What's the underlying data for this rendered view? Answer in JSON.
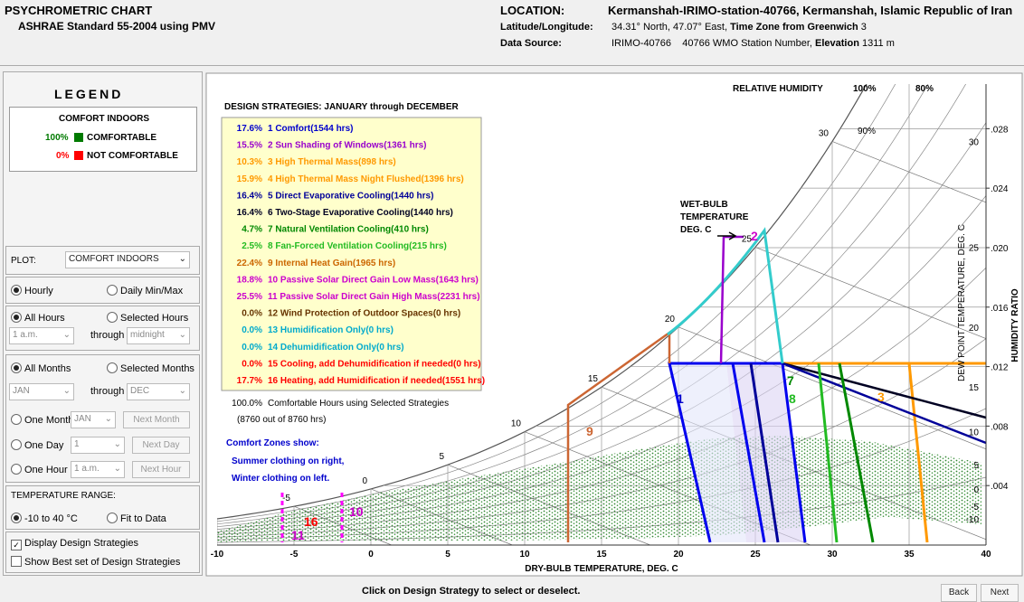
{
  "header": {
    "title": "PSYCHROMETRIC CHART",
    "subtitle": "ASHRAE Standard 55-2004 using PMV",
    "location_label": "LOCATION:",
    "location": "Kermanshah-IRIMO-station-40766, Kermanshah, Islamic Republic of Iran",
    "latlon_label": "Latitude/Longitude:",
    "latlon": "34.31° North, 47.07° East,",
    "timezone_label": "Time Zone from Greenwich",
    "timezone": "3",
    "source_label": "Data Source:",
    "source": "IRIMO-40766",
    "wmo": "40766 WMO Station Number,",
    "elevation_label": "Elevation",
    "elevation": "1311 m"
  },
  "legend": {
    "title": "LEGEND",
    "heading": "COMFORT INDOORS",
    "items": [
      {
        "percent": "100%",
        "label": "COMFORTABLE",
        "color": "#007a00"
      },
      {
        "percent": "0%",
        "label": "NOT COMFORTABLE",
        "color": "#ff0000"
      }
    ]
  },
  "controls": {
    "plot_label": "PLOT:",
    "plot_value": "COMFORT INDOORS",
    "hourly": "Hourly",
    "daily": "Daily Min/Max",
    "all_hours": "All Hours",
    "selected_hours": "Selected Hours",
    "hour_from": "1 a.m.",
    "through": "through",
    "hour_to": "midnight",
    "all_months": "All Months",
    "selected_months": "Selected Months",
    "month_from": "JAN",
    "month_to": "DEC",
    "one_month": "One Month",
    "one_month_value": "JAN",
    "next_month": "Next Month",
    "one_day": "One Day",
    "one_day_value": "1",
    "next_day": "Next Day",
    "one_hour": "One Hour",
    "one_hour_value": "1 a.m.",
    "next_hour": "Next Hour",
    "temp_range_label": "TEMPERATURE RANGE:",
    "temp_range": "-10 to 40 °C",
    "fit": "Fit to Data",
    "display_strategies": "Display Design Strategies",
    "best_strategies": "Show Best set of Design Strategies"
  },
  "chart": {
    "strategies_title": "DESIGN STRATEGIES:  JANUARY through DECEMBER",
    "strategies": [
      {
        "percent": "17.6%",
        "label": "1 Comfort(1544 hrs)",
        "color": "#0000cc"
      },
      {
        "percent": "15.5%",
        "label": "2 Sun Shading of Windows(1361 hrs)",
        "color": "#9900cc"
      },
      {
        "percent": "10.3%",
        "label": "3 High Thermal Mass(898 hrs)",
        "color": "#ff9900"
      },
      {
        "percent": "15.9%",
        "label": "4 High Thermal Mass Night Flushed(1396 hrs)",
        "color": "#ff9900"
      },
      {
        "percent": "16.4%",
        "label": "5 Direct Evaporative Cooling(1440 hrs)",
        "color": "#000099"
      },
      {
        "percent": "16.4%",
        "label": "6 Two-Stage Evaporative Cooling(1440 hrs)",
        "color": "#000022"
      },
      {
        "percent": "4.7%",
        "label": "7 Natural Ventilation Cooling(410 hrs)",
        "color": "#008800"
      },
      {
        "percent": "2.5%",
        "label": "8 Fan-Forced Ventilation Cooling(215 hrs)",
        "color": "#22bb22"
      },
      {
        "percent": "22.4%",
        "label": "9 Internal Heat Gain(1965 hrs)",
        "color": "#cc6600"
      },
      {
        "percent": "18.8%",
        "label": "10 Passive Solar Direct Gain Low Mass(1643 hrs)",
        "color": "#cc00cc"
      },
      {
        "percent": "25.5%",
        "label": "11 Passive Solar Direct Gain High Mass(2231 hrs)",
        "color": "#cc00cc"
      },
      {
        "percent": "0.0%",
        "label": "12 Wind Protection of Outdoor Spaces(0 hrs)",
        "color": "#663300"
      },
      {
        "percent": "0.0%",
        "label": "13 Humidification Only(0 hrs)",
        "color": "#00aacc"
      },
      {
        "percent": "0.0%",
        "label": "14 Dehumidification Only(0 hrs)",
        "color": "#00aacc"
      },
      {
        "percent": "0.0%",
        "label": "15 Cooling, add Dehumidification if needed(0 hrs)",
        "color": "#ff0000"
      },
      {
        "percent": "17.7%",
        "label": "16 Heating, add Humidification if needed(1551 hrs)",
        "color": "#ff0000"
      }
    ],
    "total": "100.0%",
    "total_label": "Comfortable Hours using Selected Strategies",
    "total_hours": "(8760 out of 8760 hrs)",
    "zones_note": [
      "Comfort Zones show:",
      "Summer clothing on right,",
      "Winter clothing on left."
    ],
    "rh_title": "RELATIVE HUMIDITY",
    "rh_labels": [
      "100%",
      "80%",
      "90%"
    ],
    "wetbulb_title": [
      "WET-BULB",
      "TEMPERATURE",
      "DEG. C"
    ],
    "x_title": "DRY-BULB TEMPERATURE, DEG. C",
    "y_title": "HUMIDITY RATIO",
    "dewpoint_title": "DEW POINT TEMPERATURE, DEG. C",
    "xlim": [
      -10,
      40
    ],
    "xticks": [
      -10,
      -5,
      0,
      5,
      10,
      15,
      20,
      25,
      30,
      35,
      40
    ],
    "ylim": [
      0,
      0.031
    ],
    "yticks": [
      {
        "value": 0.004,
        "label": ".004"
      },
      {
        "value": 0.008,
        "label": ".008"
      },
      {
        "value": 0.012,
        "label": ".012"
      },
      {
        "value": 0.016,
        "label": ".016"
      },
      {
        "value": 0.02,
        "label": ".020"
      },
      {
        "value": 0.024,
        "label": ".024"
      },
      {
        "value": 0.028,
        "label": ".028"
      }
    ],
    "wetbulb_labels": [
      -5,
      0,
      5,
      10,
      15,
      20,
      25,
      30
    ],
    "dewpoint_labels": [
      30,
      25,
      20,
      15,
      10,
      5,
      0,
      -5,
      -10
    ],
    "zone_labels": [
      "1",
      "2",
      "3",
      "7",
      "8",
      "9",
      "10",
      "11",
      "16"
    ]
  },
  "footer": {
    "hint": "Click on Design Strategy to select or deselect.",
    "back": "Back",
    "next": "Next"
  }
}
